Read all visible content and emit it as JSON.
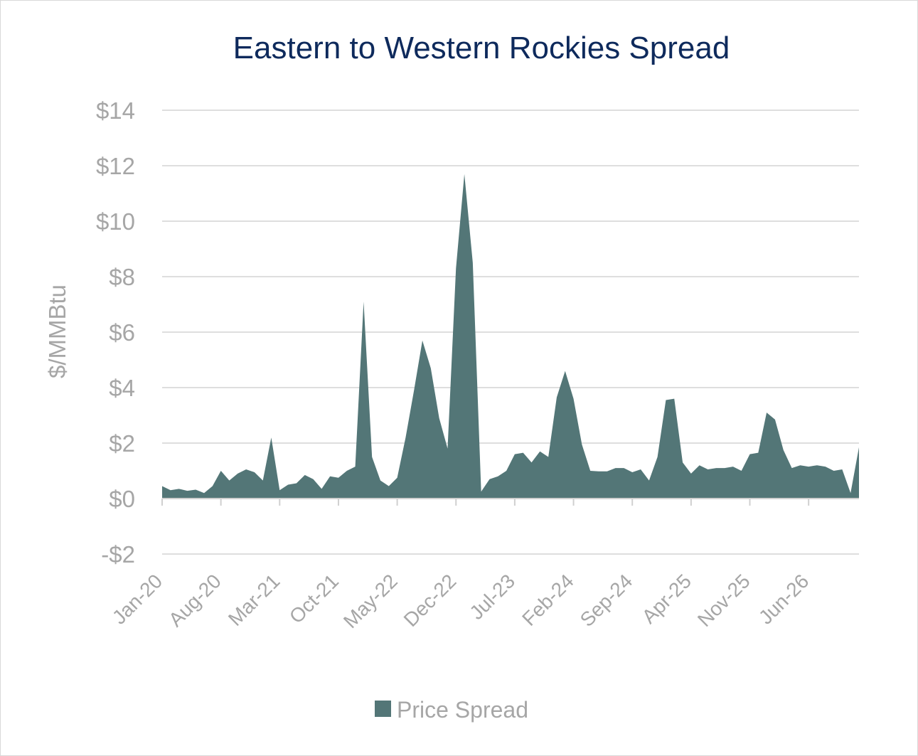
{
  "chart_data": {
    "type": "area",
    "title": "Eastern to Western Rockies Spread",
    "ylabel": "$/MMBtu",
    "xlabel": "",
    "ylim": [
      -2,
      14
    ],
    "y_tick_values": [
      -2,
      0,
      2,
      4,
      6,
      8,
      10,
      12,
      14
    ],
    "y_tick_labels": [
      "-$2",
      "$0",
      "$2",
      "$4",
      "$6",
      "$8",
      "$10",
      "$12",
      "$14"
    ],
    "x_tick_labels": [
      "Jan-20",
      "Aug-20",
      "Mar-21",
      "Oct-21",
      "May-22",
      "Dec-22",
      "Jul-23",
      "Feb-24",
      "Sep-24",
      "Apr-25",
      "Nov-25",
      "Jun-26"
    ],
    "x_start": "Jan-20",
    "x_interval": "monthly",
    "grid": true,
    "legend_position": "bottom",
    "series": [
      {
        "name": "Price Spread",
        "color": "#537677",
        "values": [
          0.45,
          0.3,
          0.35,
          0.28,
          0.32,
          0.2,
          0.45,
          1.0,
          0.65,
          0.9,
          1.05,
          0.95,
          0.65,
          2.2,
          0.3,
          0.5,
          0.55,
          0.85,
          0.7,
          0.35,
          0.8,
          0.75,
          1.0,
          1.15,
          7.1,
          1.5,
          0.65,
          0.45,
          0.75,
          2.2,
          3.9,
          5.7,
          4.7,
          2.9,
          1.8,
          8.3,
          11.7,
          8.5,
          0.25,
          0.7,
          0.8,
          1.0,
          1.6,
          1.65,
          1.3,
          1.7,
          1.5,
          3.65,
          4.6,
          3.6,
          1.95,
          1.0,
          0.98,
          0.98,
          1.1,
          1.1,
          0.95,
          1.05,
          0.65,
          1.5,
          3.55,
          3.6,
          1.3,
          0.9,
          1.2,
          1.05,
          1.1,
          1.1,
          1.15,
          1.0,
          1.6,
          1.65,
          3.1,
          2.85,
          1.75,
          1.1,
          1.2,
          1.15,
          1.2,
          1.15,
          1.0,
          1.05,
          0.2,
          1.85
        ]
      }
    ]
  }
}
